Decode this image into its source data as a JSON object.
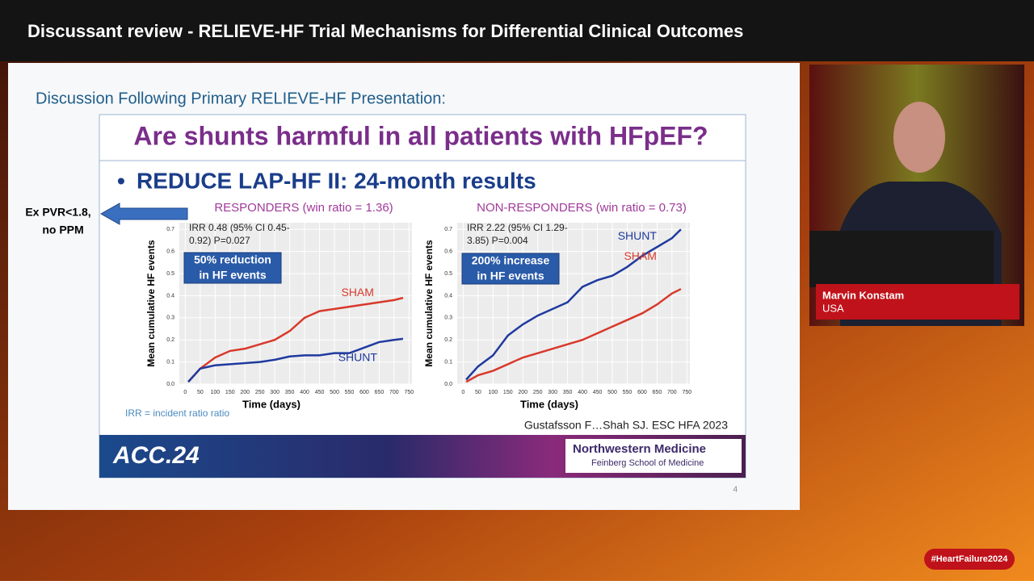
{
  "header": {
    "title": "Discussant review - RELIEVE-HF Trial Mechanisms for Differential Clinical Outcomes"
  },
  "slide": {
    "subtitle": "Discussion Following Primary RELIEVE-HF Presentation:",
    "question": "Are shunts harmful in all patients with HFpEF?",
    "bullet": "REDUCE LAP-HF II: 24-month results",
    "side_note": [
      "Ex PVR<1.8,",
      "no PPM"
    ],
    "footnote": "IRR = incident ratio ratio",
    "citation": "Gustafsson F…Shah SJ. ESC HFA 2023",
    "page_number": "4",
    "logo_left": "ACC.24",
    "logo_right": [
      "Northwestern Medicine",
      "Feinberg School of Medicine"
    ],
    "charts": [
      {
        "type": "line",
        "title": "RESPONDERS (win ratio = 1.36)",
        "annotation": [
          "IRR 0.48 (95% CI 0.45-",
          "0.92) P=0.027"
        ],
        "callout": [
          "50% reduction",
          "in HF events"
        ],
        "x_label": "Time (days)",
        "y_label": "Mean cumulative HF events",
        "x": [
          10,
          50,
          100,
          150,
          200,
          250,
          300,
          350,
          400,
          450,
          500,
          550,
          600,
          650,
          700,
          730
        ],
        "series": [
          {
            "name": "SHAM",
            "color": "#d8392b",
            "values": [
              0.01,
              0.07,
              0.12,
              0.15,
              0.16,
              0.18,
              0.2,
              0.24,
              0.3,
              0.33,
              0.34,
              0.35,
              0.36,
              0.37,
              0.38,
              0.39
            ]
          },
          {
            "name": "SHUNT",
            "color": "#1f3a9e",
            "values": [
              0.01,
              0.07,
              0.085,
              0.09,
              0.095,
              0.1,
              0.11,
              0.125,
              0.13,
              0.13,
              0.14,
              0.14,
              0.165,
              0.19,
              0.2,
              0.205
            ]
          }
        ],
        "xlim": [
          -20,
          760
        ],
        "ylim": [
          0,
          0.73
        ],
        "xticks": [
          0,
          50,
          100,
          150,
          200,
          250,
          300,
          350,
          400,
          450,
          500,
          550,
          600,
          650,
          700,
          750
        ],
        "yticks": [
          {
            "value": 0,
            "label": "0.0"
          },
          0.1,
          0.2,
          0.3,
          0.4,
          0.5,
          0.6,
          0.7
        ],
        "grid": true
      },
      {
        "type": "line",
        "title": "NON-RESPONDERS (win ratio = 0.73)",
        "annotation": [
          "IRR 2.22 (95% CI 1.29-",
          "3.85) P=0.004"
        ],
        "callout": [
          "200% increase",
          "in HF events"
        ],
        "x_label": "Time (days)",
        "y_label": "Mean cumulative HF events",
        "x": [
          10,
          50,
          100,
          150,
          200,
          250,
          300,
          350,
          400,
          450,
          500,
          550,
          600,
          650,
          700,
          730
        ],
        "series": [
          {
            "name": "SHUNT",
            "color": "#1f3a9e",
            "values": [
              0.02,
              0.08,
              0.13,
              0.22,
              0.27,
              0.31,
              0.34,
              0.37,
              0.44,
              0.47,
              0.49,
              0.53,
              0.58,
              0.62,
              0.66,
              0.7
            ]
          },
          {
            "name": "SHAM",
            "color": "#d8392b",
            "values": [
              0.01,
              0.04,
              0.06,
              0.09,
              0.12,
              0.14,
              0.16,
              0.18,
              0.2,
              0.23,
              0.26,
              0.29,
              0.32,
              0.36,
              0.41,
              0.43
            ]
          }
        ],
        "xlim": [
          -20,
          760
        ],
        "ylim": [
          0,
          0.73
        ],
        "xticks": [
          0,
          50,
          100,
          150,
          200,
          250,
          300,
          350,
          400,
          450,
          500,
          550,
          600,
          650,
          700,
          750
        ],
        "yticks": [
          {
            "value": 0,
            "label": "0.0"
          },
          0.1,
          0.2,
          0.3,
          0.4,
          0.5,
          0.6,
          0.7
        ],
        "grid": true
      }
    ]
  },
  "speaker": {
    "name": "Marvin Konstam",
    "country": "USA"
  },
  "hashtag": "#HeartFailure2024"
}
